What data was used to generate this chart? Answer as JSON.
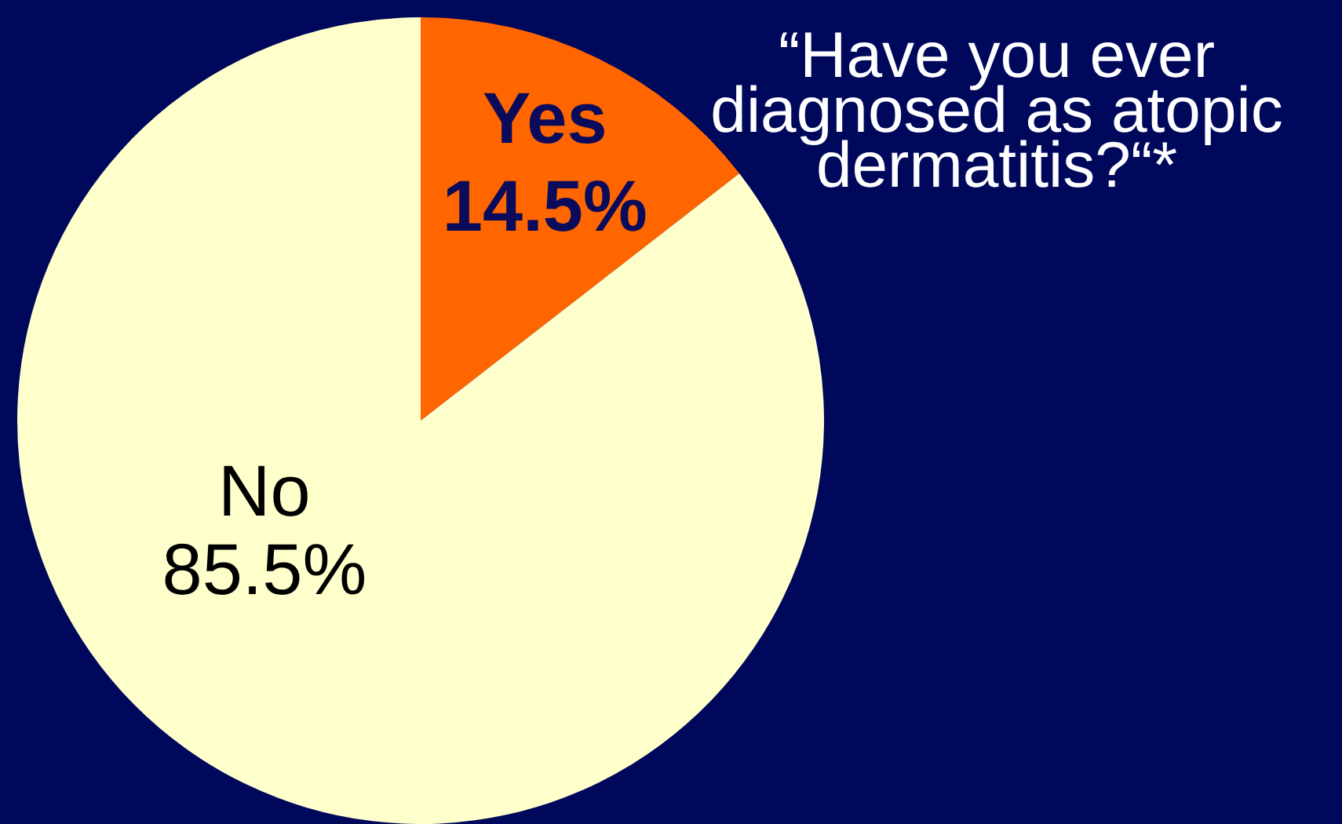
{
  "chart_data": {
    "type": "pie",
    "title": "“Have you ever\ndiagnosed as atopic\ndermatitis?“*",
    "categories": [
      "Yes",
      "No"
    ],
    "values": [
      14.5,
      85.5
    ],
    "colors": [
      "#ff6600",
      "#ffffcc"
    ],
    "value_labels": [
      "14.5%",
      "85.5%"
    ],
    "legend": false
  }
}
